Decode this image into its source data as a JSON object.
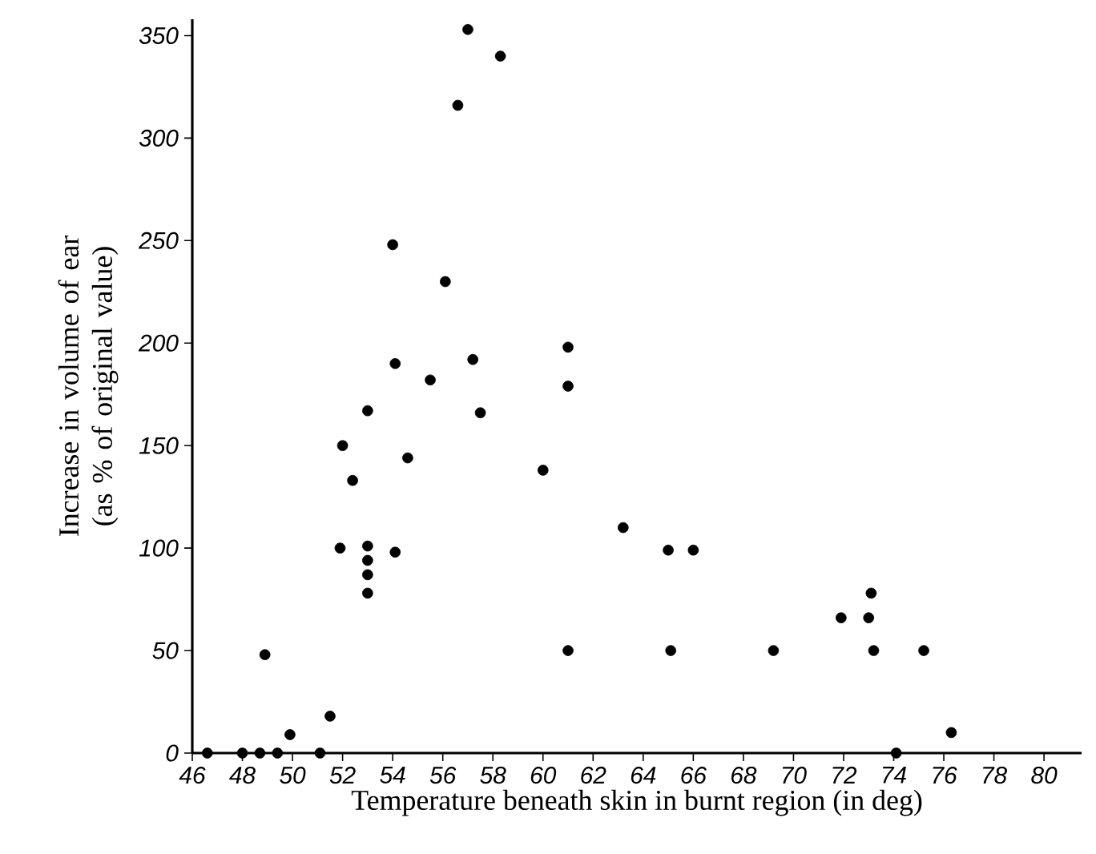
{
  "chart_data": {
    "type": "scatter",
    "xlabel": "Temperature beneath skin in burnt region (in deg)",
    "ylabel": "Increase in volume of ear (as % of original value)",
    "xlim": [
      46,
      81.5
    ],
    "ylim": [
      0,
      358
    ],
    "xticks": [
      46,
      48,
      50,
      52,
      54,
      56,
      58,
      60,
      62,
      64,
      66,
      68,
      70,
      72,
      74,
      76,
      78,
      80
    ],
    "yticks": [
      0,
      50,
      100,
      150,
      200,
      250,
      300,
      350
    ],
    "marker": "circle",
    "grid": false,
    "series": [
      {
        "color": "#000000",
        "x": [
          46.6,
          48.0,
          48.7,
          49.4,
          48.9,
          49.9,
          51.1,
          51.5,
          51.9,
          52.0,
          52.4,
          53.0,
          53.0,
          53.0,
          53.0,
          53.0,
          54.0,
          54.1,
          54.1,
          54.6,
          55.5,
          56.1,
          56.6,
          57.0,
          57.2,
          57.5,
          58.3,
          60.0,
          61.0,
          61.0,
          61.0,
          63.2,
          65.0,
          65.1,
          66.0,
          69.2,
          71.9,
          73.0,
          73.1,
          73.2,
          74.1,
          75.2,
          76.3
        ],
        "values": [
          0,
          0,
          0,
          0,
          48,
          9,
          0,
          18,
          100,
          150,
          133,
          167,
          101,
          94,
          87,
          78,
          248,
          190,
          98,
          144,
          182,
          230,
          316,
          353,
          192,
          166,
          340,
          138,
          198,
          179,
          50,
          110,
          99,
          50,
          99,
          50,
          66,
          66,
          78,
          50,
          0,
          50,
          10
        ]
      }
    ]
  }
}
